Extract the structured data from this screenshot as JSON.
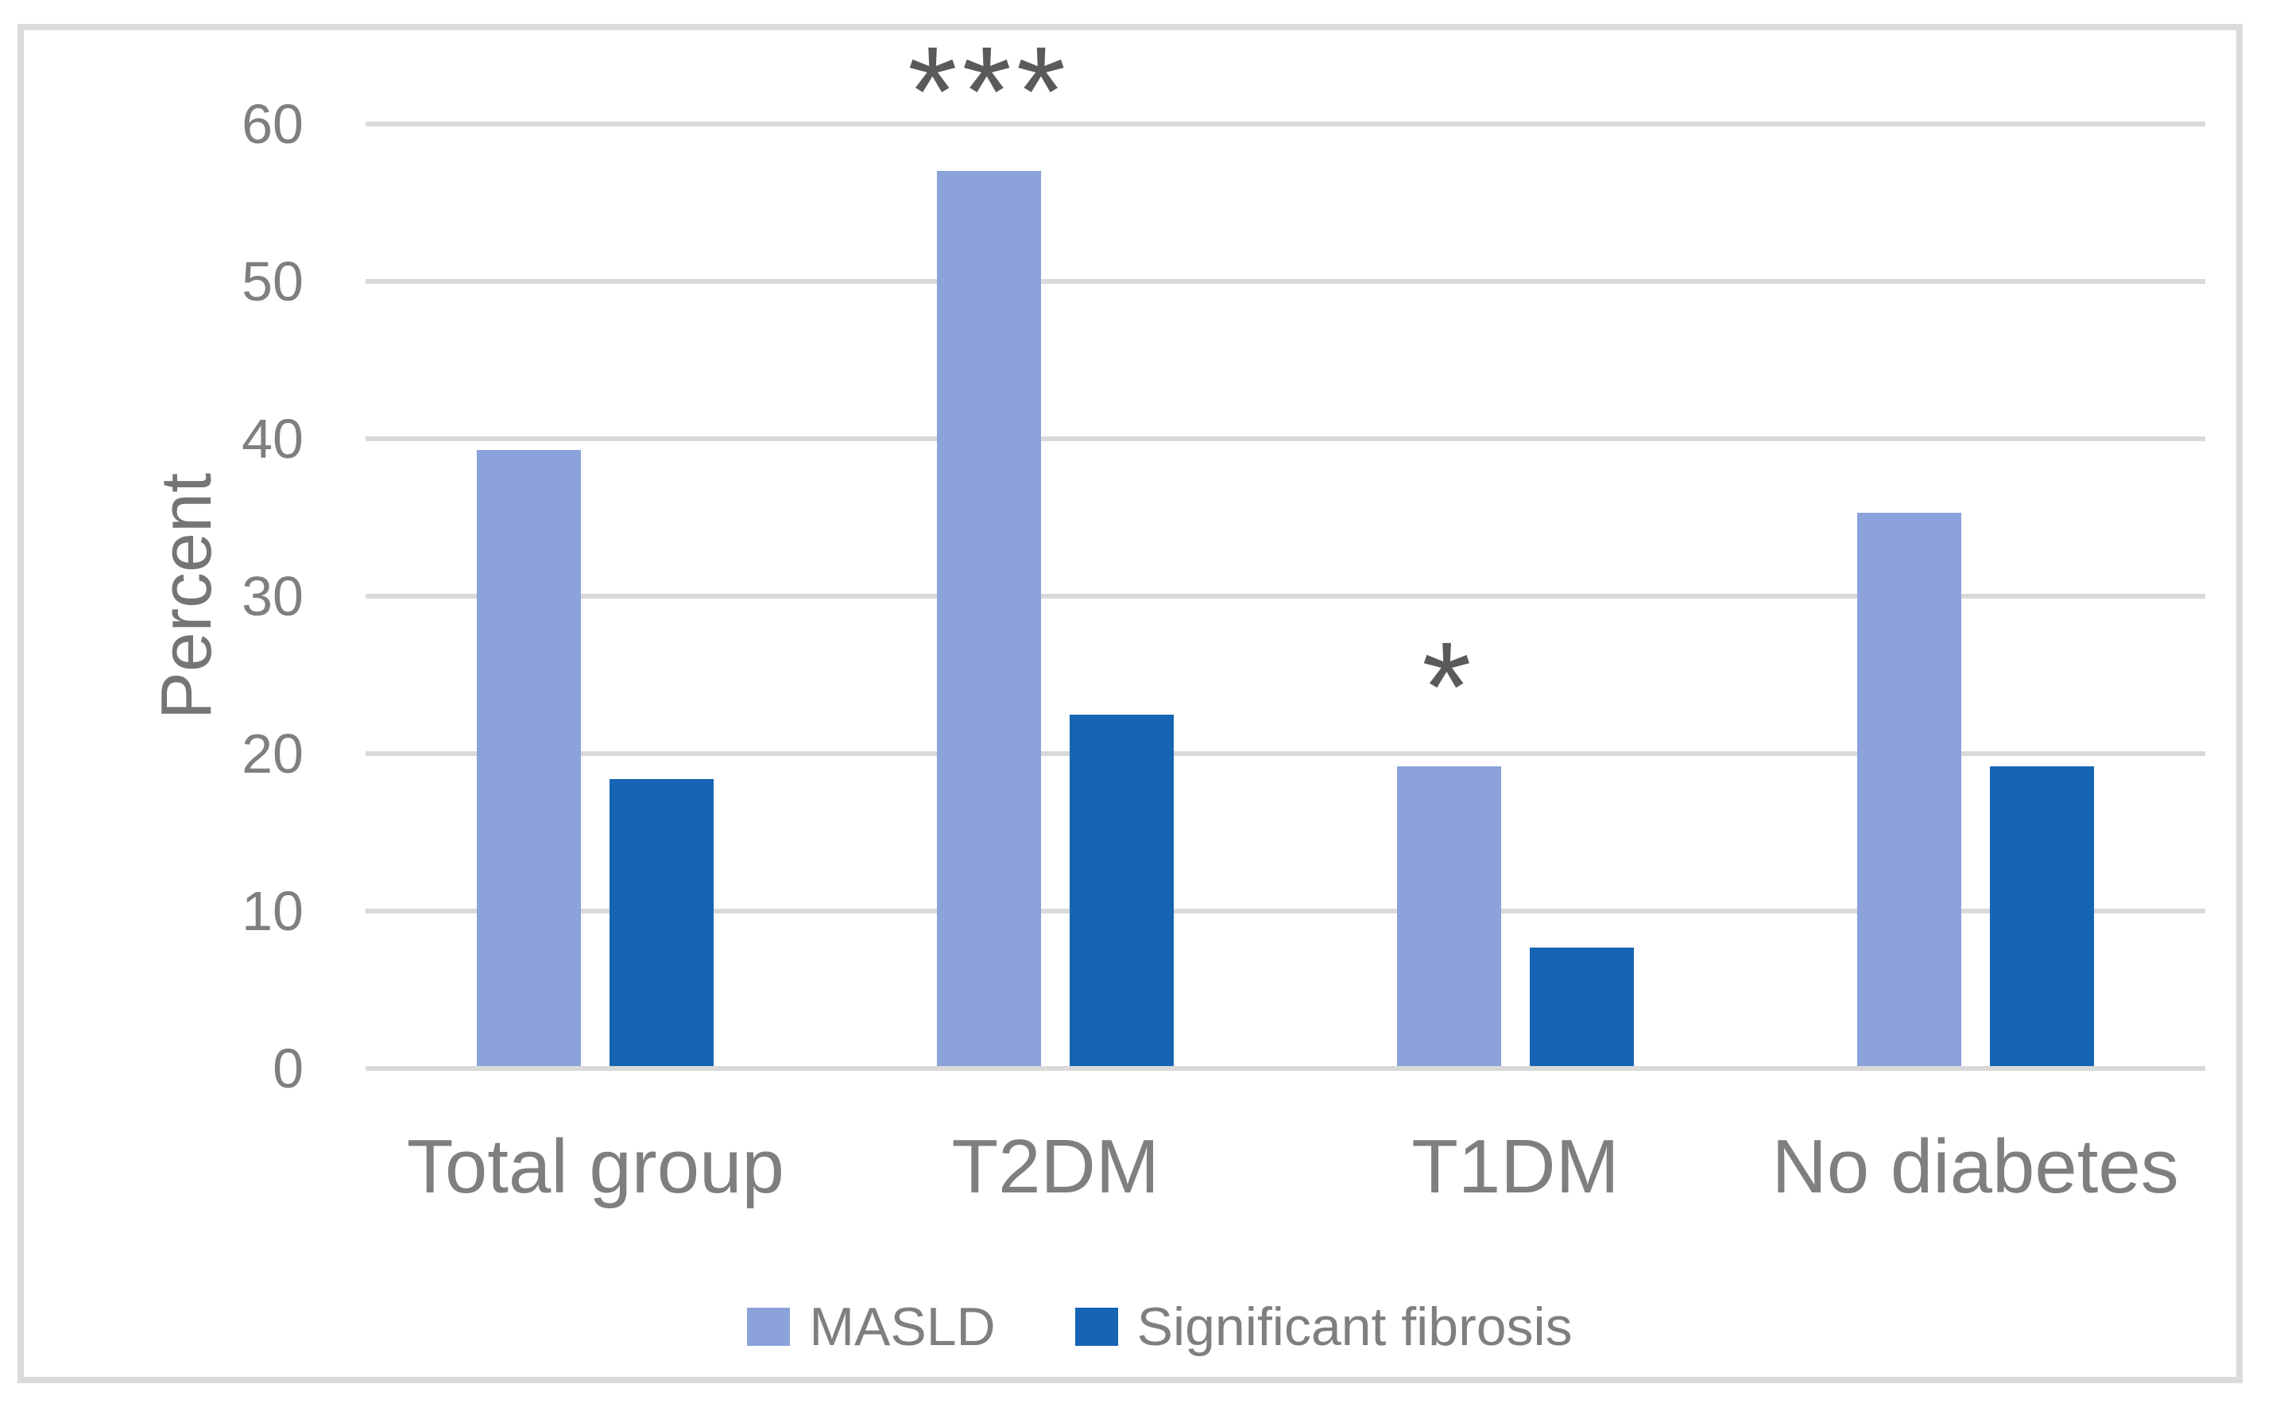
{
  "chart_data": {
    "type": "bar",
    "title": "",
    "categories": [
      "Total group",
      "T2DM",
      "T1DM",
      "No diabetes"
    ],
    "series": [
      {
        "name": "MASLD",
        "color": "#8BA2DA",
        "values": [
          39.3,
          57.0,
          19.2,
          35.3
        ]
      },
      {
        "name": "Significant fibrosis",
        "color": "#1565B4",
        "values": [
          18.4,
          22.5,
          7.7,
          19.2
        ]
      }
    ],
    "xlabel": "",
    "ylabel": "Percent",
    "ylim": [
      0,
      60
    ],
    "yticks": [
      0,
      10,
      20,
      30,
      40,
      50,
      60
    ],
    "grid": true,
    "legend_position": "bottom",
    "annotations": [
      {
        "text": "***",
        "category_index": 1,
        "series_index": 0
      },
      {
        "text": "*",
        "category_index": 2,
        "series_index": 0
      }
    ],
    "colors": {
      "gridline": "#D9D9D9",
      "axis_text": "#7F7F7F",
      "annotation_text": "#5A5A5A",
      "frame_border": "#DBDBDB",
      "background": "#FFFFFF"
    }
  }
}
